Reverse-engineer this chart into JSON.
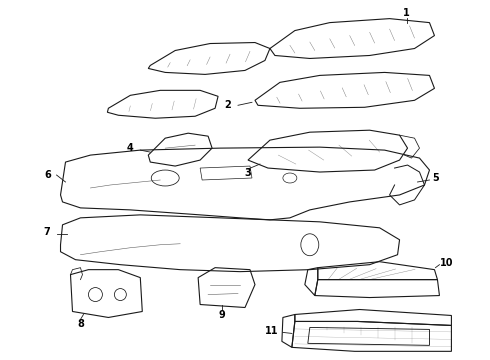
{
  "bg_color": "#ffffff",
  "line_color": "#1a1a1a",
  "text_color": "#000000",
  "lw": 0.8,
  "figsize": [
    4.9,
    3.6
  ],
  "dpi": 100
}
